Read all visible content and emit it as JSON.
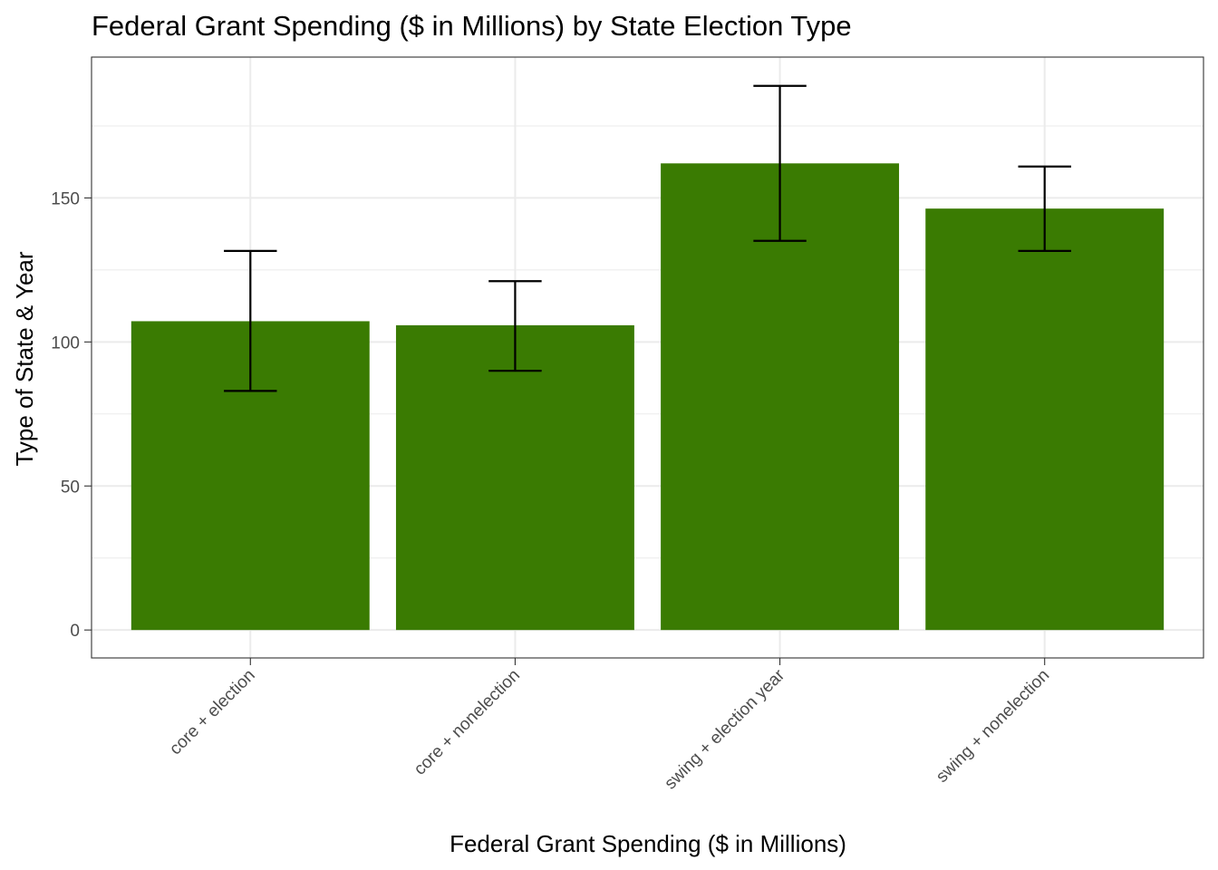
{
  "chart_data": {
    "type": "bar",
    "title": "Federal Grant Spending ($ in Millions) by State Election Type",
    "xlabel": "Federal Grant Spending ($ in Millions)",
    "ylabel": "Type of State & Year",
    "categories": [
      "core + election",
      "core + nonelection",
      "swing + election year",
      "swing + nonelection"
    ],
    "values": [
      107.2,
      105.8,
      162.0,
      146.3
    ],
    "error_bars": [
      {
        "low": 83.0,
        "high": 131.6
      },
      {
        "low": 90.0,
        "high": 121.1
      },
      {
        "low": 135.1,
        "high": 188.9
      },
      {
        "low": 131.6,
        "high": 160.9
      }
    ],
    "ylim": [
      -9.7,
      198.9
    ],
    "yticks": [
      0,
      50,
      100,
      150
    ],
    "ytick_labels": [
      "0",
      "50",
      "100",
      "150"
    ],
    "bar_color": "#3a7b02",
    "grid": true,
    "legend": "none"
  }
}
